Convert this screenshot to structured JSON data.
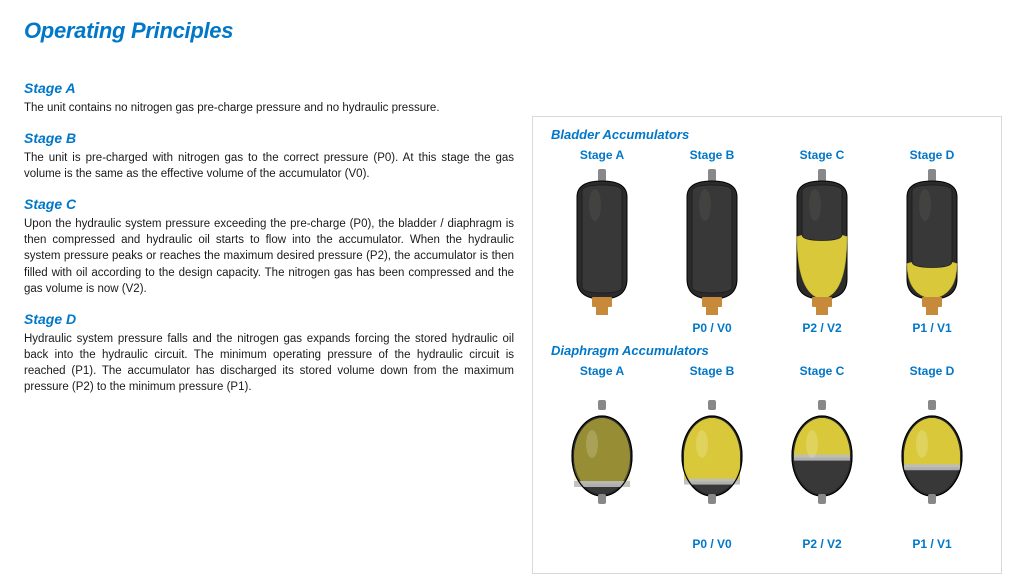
{
  "title": "Operating Principles",
  "colors": {
    "brand_blue": "#0077c8",
    "text": "#1a1a1a",
    "panel_border": "#d9d9d9",
    "shell_dark": "#2b2b2b",
    "shell_shadow": "#111111",
    "bladder": "#383838",
    "bladder_light": "#4a4a48",
    "oil": "#d8c83a",
    "oil_dark": "#a99a1e",
    "connector": "#c78a3a",
    "stem": "#888888"
  },
  "stages": [
    {
      "heading": "Stage A",
      "body": "The unit contains no nitrogen gas pre-charge pressure and no hydraulic pressure."
    },
    {
      "heading": "Stage B",
      "body": "The unit is pre-charged with nitrogen gas to the correct pressure (P0). At this stage the gas volume is the same as the effective volume of the accumulator (V0)."
    },
    {
      "heading": "Stage C",
      "body": "Upon the hydraulic system pressure exceeding the pre-charge (P0), the bladder / diaphragm is then compressed and hydraulic oil starts to flow into the accumulator. When the hydraulic system pressure peaks or reaches the maximum desired pressure (P2), the accumulator is then filled with oil according to the design capacity. The nitrogen gas has been compressed and the gas volume is now (V2)."
    },
    {
      "heading": "Stage D",
      "body": "Hydraulic system pressure falls and the nitrogen gas expands forcing the stored hydraulic oil back into the hydraulic circuit. The minimum operating pressure of the hydraulic circuit is reached (P1). The accumulator has discharged its stored volume down from the maximum pressure (P2) to the minimum pressure (P1)."
    }
  ],
  "panel": {
    "sections": [
      {
        "title": "Bladder Accumulators",
        "type": "bladder",
        "items": [
          {
            "label": "Stage A",
            "caption": "",
            "fill": 0.0
          },
          {
            "label": "Stage B",
            "caption": "P0 / V0",
            "fill": 0.0
          },
          {
            "label": "Stage C",
            "caption": "P2 / V2",
            "fill": 0.65
          },
          {
            "label": "Stage D",
            "caption": "P1 / V1",
            "fill": 0.35
          }
        ]
      },
      {
        "title": "Diaphragm Accumulators",
        "type": "diaphragm",
        "items": [
          {
            "label": "Stage A",
            "caption": "",
            "fill": 0.0
          },
          {
            "label": "Stage B",
            "caption": "P0 / V0",
            "fill": 0.05
          },
          {
            "label": "Stage C",
            "caption": "P2 / V2",
            "fill": 0.55
          },
          {
            "label": "Stage D",
            "caption": "P1 / V1",
            "fill": 0.35
          }
        ]
      }
    ]
  }
}
